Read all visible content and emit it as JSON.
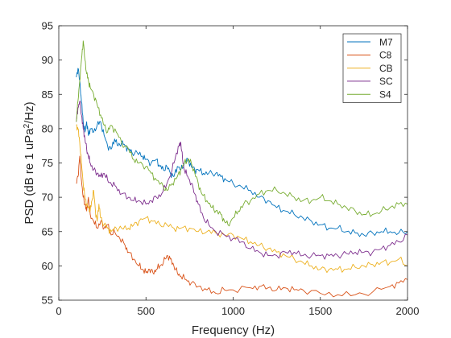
{
  "chart_data": {
    "type": "line",
    "title": "",
    "xlabel": "Frequency (Hz)",
    "ylabel_parts": {
      "prefix": "PSD (dB re 1 uPa",
      "sup": "2",
      "suffix": "/Hz)"
    },
    "xlim": [
      0,
      2000
    ],
    "ylim": [
      55,
      95
    ],
    "xticks": [
      0,
      500,
      1000,
      1500,
      2000
    ],
    "yticks": [
      55,
      60,
      65,
      70,
      75,
      80,
      85,
      90,
      95
    ],
    "grid": false,
    "legend_position": "top-right",
    "series": [
      {
        "name": "M7",
        "color": "#0072BD",
        "points": [
          [
            100,
            87.5
          ],
          [
            110,
            88.8
          ],
          [
            120,
            87.0
          ],
          [
            130,
            84.0
          ],
          [
            140,
            81.0
          ],
          [
            150,
            79.5
          ],
          [
            160,
            81.0
          ],
          [
            170,
            79.0
          ],
          [
            180,
            80.0
          ],
          [
            200,
            79.5
          ],
          [
            220,
            80.5
          ],
          [
            240,
            81.0
          ],
          [
            260,
            79.0
          ],
          [
            280,
            77.5
          ],
          [
            300,
            77.0
          ],
          [
            320,
            78.5
          ],
          [
            340,
            77.5
          ],
          [
            360,
            78.0
          ],
          [
            380,
            77.5
          ],
          [
            400,
            77.0
          ],
          [
            420,
            76.5
          ],
          [
            450,
            76.5
          ],
          [
            480,
            76.0
          ],
          [
            500,
            75.5
          ],
          [
            530,
            75.0
          ],
          [
            560,
            75.5
          ],
          [
            580,
            74.5
          ],
          [
            600,
            74.0
          ],
          [
            620,
            74.5
          ],
          [
            640,
            73.5
          ],
          [
            660,
            73.0
          ],
          [
            680,
            74.5
          ],
          [
            700,
            74.0
          ],
          [
            720,
            75.0
          ],
          [
            740,
            75.5
          ],
          [
            760,
            74.5
          ],
          [
            780,
            74.0
          ],
          [
            800,
            74.0
          ],
          [
            830,
            73.5
          ],
          [
            860,
            73.5
          ],
          [
            900,
            73.5
          ],
          [
            930,
            73.0
          ],
          [
            960,
            72.5
          ],
          [
            1000,
            72.0
          ],
          [
            1050,
            71.5
          ],
          [
            1100,
            71.0
          ],
          [
            1150,
            70.0
          ],
          [
            1200,
            69.5
          ],
          [
            1250,
            68.5
          ],
          [
            1300,
            68.0
          ],
          [
            1350,
            67.5
          ],
          [
            1400,
            67.0
          ],
          [
            1450,
            66.5
          ],
          [
            1500,
            66.0
          ],
          [
            1550,
            65.5
          ],
          [
            1600,
            65.5
          ],
          [
            1650,
            65.0
          ],
          [
            1700,
            64.8
          ],
          [
            1750,
            64.5
          ],
          [
            1800,
            64.8
          ],
          [
            1850,
            65.0
          ],
          [
            1900,
            65.0
          ],
          [
            1950,
            64.8
          ],
          [
            2000,
            65.0
          ]
        ]
      },
      {
        "name": "C8",
        "color": "#D95319",
        "points": [
          [
            100,
            72.0
          ],
          [
            110,
            73.0
          ],
          [
            120,
            76.0
          ],
          [
            130,
            72.5
          ],
          [
            140,
            70.0
          ],
          [
            150,
            69.0
          ],
          [
            160,
            68.0
          ],
          [
            170,
            70.0
          ],
          [
            180,
            67.5
          ],
          [
            200,
            66.5
          ],
          [
            220,
            65.5
          ],
          [
            240,
            66.5
          ],
          [
            260,
            65.5
          ],
          [
            280,
            66.0
          ],
          [
            300,
            64.5
          ],
          [
            320,
            65.0
          ],
          [
            350,
            64.0
          ],
          [
            380,
            63.0
          ],
          [
            400,
            62.0
          ],
          [
            430,
            61.0
          ],
          [
            460,
            60.0
          ],
          [
            480,
            59.5
          ],
          [
            500,
            59.0
          ],
          [
            520,
            59.5
          ],
          [
            540,
            59.0
          ],
          [
            560,
            59.5
          ],
          [
            580,
            60.0
          ],
          [
            600,
            60.5
          ],
          [
            620,
            61.5
          ],
          [
            640,
            61.0
          ],
          [
            660,
            60.0
          ],
          [
            680,
            59.0
          ],
          [
            700,
            58.5
          ],
          [
            730,
            58.0
          ],
          [
            760,
            57.5
          ],
          [
            800,
            57.0
          ],
          [
            850,
            56.5
          ],
          [
            900,
            56.0
          ],
          [
            950,
            56.5
          ],
          [
            1000,
            56.5
          ],
          [
            1100,
            56.8
          ],
          [
            1150,
            57.0
          ],
          [
            1200,
            56.8
          ],
          [
            1250,
            56.5
          ],
          [
            1300,
            56.8
          ],
          [
            1350,
            56.5
          ],
          [
            1400,
            56.5
          ],
          [
            1500,
            56.0
          ],
          [
            1600,
            55.8
          ],
          [
            1700,
            55.8
          ],
          [
            1800,
            56.2
          ],
          [
            1900,
            57.0
          ],
          [
            1950,
            57.5
          ],
          [
            2000,
            58.0
          ]
        ]
      },
      {
        "name": "CB",
        "color": "#EDB120",
        "points": [
          [
            100,
            80.5
          ],
          [
            110,
            80.0
          ],
          [
            120,
            78.0
          ],
          [
            130,
            75.0
          ],
          [
            140,
            72.0
          ],
          [
            150,
            70.0
          ],
          [
            160,
            69.0
          ],
          [
            170,
            68.5
          ],
          [
            180,
            68.0
          ],
          [
            190,
            69.5
          ],
          [
            200,
            71.0
          ],
          [
            210,
            68.0
          ],
          [
            220,
            66.5
          ],
          [
            230,
            69.0
          ],
          [
            240,
            67.0
          ],
          [
            260,
            66.0
          ],
          [
            280,
            65.5
          ],
          [
            300,
            65.0
          ],
          [
            330,
            65.5
          ],
          [
            360,
            65.5
          ],
          [
            400,
            65.5
          ],
          [
            430,
            66.0
          ],
          [
            460,
            66.5
          ],
          [
            500,
            67.0
          ],
          [
            540,
            66.5
          ],
          [
            580,
            66.0
          ],
          [
            620,
            66.0
          ],
          [
            660,
            65.5
          ],
          [
            700,
            65.5
          ],
          [
            750,
            65.5
          ],
          [
            800,
            65.0
          ],
          [
            850,
            65.0
          ],
          [
            900,
            64.8
          ],
          [
            950,
            64.5
          ],
          [
            1000,
            64.5
          ],
          [
            1050,
            64.0
          ],
          [
            1100,
            63.5
          ],
          [
            1150,
            63.0
          ],
          [
            1200,
            62.5
          ],
          [
            1250,
            62.0
          ],
          [
            1300,
            61.5
          ],
          [
            1350,
            61.0
          ],
          [
            1400,
            60.5
          ],
          [
            1450,
            60.0
          ],
          [
            1500,
            59.5
          ],
          [
            1550,
            59.5
          ],
          [
            1600,
            59.5
          ],
          [
            1650,
            59.5
          ],
          [
            1700,
            59.8
          ],
          [
            1750,
            60.0
          ],
          [
            1800,
            60.2
          ],
          [
            1850,
            60.5
          ],
          [
            1900,
            60.5
          ],
          [
            1950,
            61.0
          ],
          [
            2000,
            60.0
          ]
        ]
      },
      {
        "name": "SC",
        "color": "#7E2F8E",
        "points": [
          [
            100,
            81.0
          ],
          [
            110,
            83.0
          ],
          [
            120,
            84.0
          ],
          [
            130,
            82.0
          ],
          [
            140,
            80.0
          ],
          [
            150,
            78.5
          ],
          [
            160,
            77.0
          ],
          [
            170,
            76.0
          ],
          [
            180,
            75.0
          ],
          [
            200,
            74.0
          ],
          [
            220,
            73.5
          ],
          [
            240,
            73.0
          ],
          [
            260,
            73.5
          ],
          [
            280,
            72.5
          ],
          [
            300,
            72.0
          ],
          [
            330,
            71.5
          ],
          [
            360,
            70.5
          ],
          [
            400,
            70.0
          ],
          [
            430,
            69.5
          ],
          [
            460,
            69.5
          ],
          [
            500,
            69.0
          ],
          [
            530,
            69.5
          ],
          [
            560,
            70.0
          ],
          [
            590,
            70.5
          ],
          [
            620,
            72.0
          ],
          [
            650,
            74.0
          ],
          [
            670,
            76.0
          ],
          [
            690,
            77.5
          ],
          [
            700,
            78.0
          ],
          [
            710,
            75.5
          ],
          [
            720,
            74.0
          ],
          [
            740,
            73.0
          ],
          [
            760,
            72.0
          ],
          [
            780,
            70.5
          ],
          [
            800,
            69.0
          ],
          [
            830,
            67.0
          ],
          [
            860,
            66.0
          ],
          [
            900,
            65.0
          ],
          [
            950,
            64.5
          ],
          [
            1000,
            64.0
          ],
          [
            1050,
            63.5
          ],
          [
            1100,
            62.5
          ],
          [
            1150,
            62.0
          ],
          [
            1200,
            61.5
          ],
          [
            1250,
            61.5
          ],
          [
            1300,
            62.0
          ],
          [
            1350,
            62.0
          ],
          [
            1400,
            61.5
          ],
          [
            1450,
            61.5
          ],
          [
            1500,
            61.5
          ],
          [
            1550,
            61.5
          ],
          [
            1600,
            61.5
          ],
          [
            1650,
            61.8
          ],
          [
            1700,
            62.0
          ],
          [
            1750,
            62.0
          ],
          [
            1800,
            62.0
          ],
          [
            1850,
            62.5
          ],
          [
            1900,
            63.0
          ],
          [
            1950,
            63.5
          ],
          [
            2000,
            64.5
          ]
        ]
      },
      {
        "name": "S4",
        "color": "#77AC30",
        "points": [
          [
            100,
            81.0
          ],
          [
            110,
            84.0
          ],
          [
            120,
            87.0
          ],
          [
            130,
            90.0
          ],
          [
            140,
            92.8
          ],
          [
            150,
            90.0
          ],
          [
            160,
            88.0
          ],
          [
            170,
            87.0
          ],
          [
            180,
            86.0
          ],
          [
            200,
            85.0
          ],
          [
            220,
            83.5
          ],
          [
            240,
            82.0
          ],
          [
            260,
            80.5
          ],
          [
            280,
            79.5
          ],
          [
            300,
            80.5
          ],
          [
            330,
            79.5
          ],
          [
            360,
            78.0
          ],
          [
            400,
            77.0
          ],
          [
            430,
            75.5
          ],
          [
            460,
            75.0
          ],
          [
            500,
            74.5
          ],
          [
            530,
            73.5
          ],
          [
            560,
            72.5
          ],
          [
            600,
            71.5
          ],
          [
            620,
            71.0
          ],
          [
            650,
            72.0
          ],
          [
            680,
            73.0
          ],
          [
            700,
            74.0
          ],
          [
            720,
            75.0
          ],
          [
            740,
            75.5
          ],
          [
            760,
            75.0
          ],
          [
            780,
            73.5
          ],
          [
            800,
            72.0
          ],
          [
            820,
            70.5
          ],
          [
            850,
            69.5
          ],
          [
            880,
            68.5
          ],
          [
            900,
            68.0
          ],
          [
            930,
            67.5
          ],
          [
            950,
            66.5
          ],
          [
            970,
            66.0
          ],
          [
            1000,
            67.0
          ],
          [
            1030,
            68.0
          ],
          [
            1060,
            69.0
          ],
          [
            1100,
            69.5
          ],
          [
            1150,
            70.5
          ],
          [
            1200,
            71.0
          ],
          [
            1250,
            71.0
          ],
          [
            1300,
            70.5
          ],
          [
            1350,
            70.0
          ],
          [
            1400,
            69.5
          ],
          [
            1450,
            69.5
          ],
          [
            1500,
            70.0
          ],
          [
            1550,
            69.5
          ],
          [
            1600,
            69.0
          ],
          [
            1650,
            68.5
          ],
          [
            1700,
            68.0
          ],
          [
            1750,
            67.5
          ],
          [
            1800,
            67.5
          ],
          [
            1850,
            68.0
          ],
          [
            1900,
            68.5
          ],
          [
            1950,
            69.0
          ],
          [
            2000,
            69.0
          ]
        ]
      }
    ]
  }
}
